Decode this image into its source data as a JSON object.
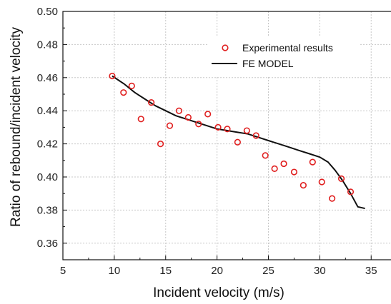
{
  "chart_data": {
    "type": "scatter",
    "xlabel": "Incident velocity (m/s)",
    "ylabel": "Ratio of rebound/incident velocity",
    "xlim": [
      5,
      37
    ],
    "ylim": [
      0.35,
      0.5
    ],
    "xticks": [
      "5",
      "10",
      "15",
      "20",
      "25",
      "30",
      "35"
    ],
    "yticks": [
      "0.36",
      "0.38",
      "0.40",
      "0.42",
      "0.44",
      "0.46",
      "0.48",
      "0.50"
    ],
    "grid": true,
    "legend_position": "top-right",
    "series": [
      {
        "name": "Experimental results",
        "kind": "marker",
        "color": "#e02020",
        "x": [
          9.8,
          10.9,
          11.7,
          12.6,
          13.6,
          14.5,
          15.4,
          16.3,
          17.2,
          18.2,
          19.1,
          20.1,
          21.0,
          22.0,
          22.9,
          23.8,
          24.7,
          25.6,
          26.5,
          27.5,
          28.4,
          29.3,
          30.2,
          31.2,
          32.1,
          33.0
        ],
        "y": [
          0.461,
          0.451,
          0.455,
          0.435,
          0.445,
          0.42,
          0.431,
          0.44,
          0.436,
          0.432,
          0.438,
          0.43,
          0.429,
          0.421,
          0.428,
          0.425,
          0.413,
          0.405,
          0.408,
          0.403,
          0.395,
          0.409,
          0.397,
          0.387,
          0.399,
          0.391
        ]
      },
      {
        "name": "FE MODEL",
        "kind": "line",
        "color": "#111111",
        "x": [
          9.8,
          11.0,
          12.0,
          13.0,
          14.0,
          15.0,
          16.0,
          17.0,
          18.0,
          19.0,
          20.0,
          21.0,
          22.0,
          23.0,
          24.0,
          25.0,
          26.0,
          27.0,
          28.0,
          29.0,
          30.0,
          30.8,
          31.5,
          32.2,
          33.0,
          33.7,
          34.4
        ],
        "y": [
          0.461,
          0.456,
          0.451,
          0.447,
          0.443,
          0.44,
          0.437,
          0.435,
          0.433,
          0.431,
          0.429,
          0.428,
          0.427,
          0.426,
          0.424,
          0.422,
          0.42,
          0.418,
          0.416,
          0.414,
          0.412,
          0.409,
          0.404,
          0.398,
          0.39,
          0.382,
          0.381
        ]
      }
    ]
  }
}
